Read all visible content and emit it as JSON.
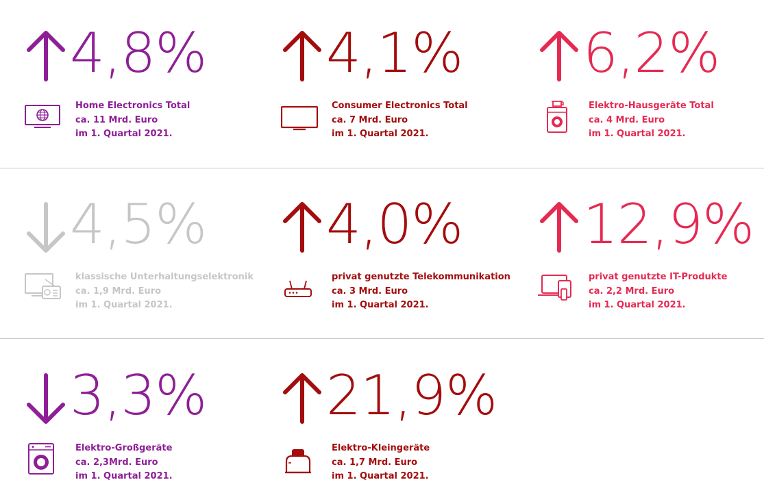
{
  "colors": {
    "purple": "#8e1f96",
    "darkred": "#a30d0d",
    "crimson": "#e52a52",
    "gray": "#c6c6c6",
    "divider": "#c8c8c8"
  },
  "tiles": [
    {
      "direction": "up",
      "value": "4,8%",
      "color": "#8e1f96",
      "icon": "tv-globe-icon",
      "title": "Home Electronics Total",
      "amount": "ca. 11 Mrd. Euro",
      "period": "im 1. Quartal 2021."
    },
    {
      "direction": "up",
      "value": "4,1%",
      "color": "#a30d0d",
      "icon": "tv-icon",
      "title": "Consumer Electronics Total",
      "amount": "ca. 7 Mrd. Euro",
      "period": "im 1. Quartal 2021."
    },
    {
      "direction": "up",
      "value": "6,2%",
      "color": "#e52a52",
      "icon": "washer-coffee-icon",
      "title": "Elektro-Hausgeräte Total",
      "amount": "ca. 4 Mrd. Euro",
      "period": "im 1. Quartal 2021."
    },
    {
      "direction": "down",
      "value": "4,5%",
      "color": "#c6c6c6",
      "icon": "tv-radio-icon",
      "title": "klassische Unterhaltungselektronik",
      "amount": "ca. 1,9 Mrd. Euro",
      "period": "im 1. Quartal 2021."
    },
    {
      "direction": "up",
      "value": "4,0%",
      "color": "#a30d0d",
      "icon": "router-icon",
      "title": "privat genutzte Telekommunikation",
      "amount": "ca. 3 Mrd. Euro",
      "period": "im 1. Quartal 2021."
    },
    {
      "direction": "up",
      "value": "12,9%",
      "color": "#e52a52",
      "icon": "laptop-devices-icon",
      "title": "privat genutzte IT-Produkte",
      "amount": "ca. 2,2 Mrd. Euro",
      "period": "im 1. Quartal 2021."
    },
    {
      "direction": "down",
      "value": "3,3%",
      "color": "#8e1f96",
      "icon": "washing-machine-icon",
      "title": "Elektro-Großgeräte",
      "amount": "ca. 2,3Mrd. Euro",
      "period": "im 1. Quartal 2021."
    },
    {
      "direction": "up",
      "value": "21,9%",
      "color": "#a30d0d",
      "icon": "toaster-icon",
      "title": "Elektro-Kleingeräte",
      "amount": "ca. 1,7 Mrd. Euro",
      "period": "im 1. Quartal 2021."
    }
  ]
}
